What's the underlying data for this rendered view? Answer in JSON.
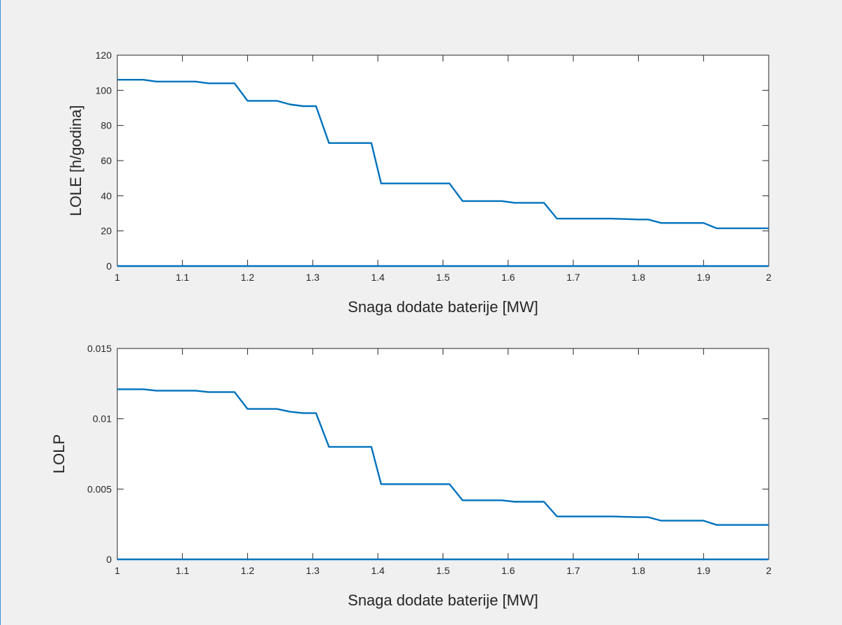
{
  "chart_data": [
    {
      "type": "line",
      "xlabel": "Snaga dodate baterije [MW]",
      "ylabel": "LOLE [h/godina]",
      "xlim": [
        1,
        2
      ],
      "ylim": [
        0,
        120
      ],
      "xticks": [
        1,
        1.1,
        1.2,
        1.3,
        1.4,
        1.5,
        1.6,
        1.7,
        1.8,
        1.9,
        2
      ],
      "xtick_labels": [
        "1",
        "1.1",
        "1.2",
        "1.3",
        "1.4",
        "1.5",
        "1.6",
        "1.7",
        "1.8",
        "1.9",
        "2"
      ],
      "yticks": [
        0,
        20,
        40,
        60,
        80,
        100,
        120
      ],
      "ytick_labels": [
        "0",
        "20",
        "40",
        "60",
        "80",
        "100",
        "120"
      ],
      "grid": false,
      "series": [
        {
          "color": "#0072bd",
          "x": [
            1,
            1.04,
            1.06,
            1.12,
            1.14,
            1.18,
            1.2,
            1.245,
            1.265,
            1.285,
            1.305,
            1.325,
            1.39,
            1.405,
            1.51,
            1.53,
            1.59,
            1.61,
            1.655,
            1.675,
            1.76,
            1.8,
            1.815,
            1.835,
            1.9,
            1.92,
            2
          ],
          "y": [
            106,
            106,
            105,
            105,
            104,
            104,
            94,
            94,
            92,
            91,
            91,
            70,
            70,
            47,
            47,
            37,
            37,
            36,
            36,
            27,
            27,
            26.5,
            26.5,
            24.5,
            24.5,
            21.5,
            21.5
          ]
        },
        {
          "color": "#0072bd",
          "x": [
            1,
            2
          ],
          "y": [
            0,
            0
          ]
        }
      ]
    },
    {
      "type": "line",
      "xlabel": "Snaga dodate baterije [MW]",
      "ylabel": "LOLP",
      "xlim": [
        1,
        2
      ],
      "ylim": [
        0,
        0.015
      ],
      "xticks": [
        1,
        1.1,
        1.2,
        1.3,
        1.4,
        1.5,
        1.6,
        1.7,
        1.8,
        1.9,
        2
      ],
      "xtick_labels": [
        "1",
        "1.1",
        "1.2",
        "1.3",
        "1.4",
        "1.5",
        "1.6",
        "1.7",
        "1.8",
        "1.9",
        "2"
      ],
      "yticks": [
        0,
        0.005,
        0.01,
        0.015
      ],
      "ytick_labels": [
        "0",
        "0.005",
        "0.01",
        "0.015"
      ],
      "grid": false,
      "series": [
        {
          "color": "#0072bd",
          "x": [
            1,
            1.04,
            1.06,
            1.12,
            1.14,
            1.18,
            1.2,
            1.245,
            1.265,
            1.285,
            1.305,
            1.325,
            1.39,
            1.405,
            1.51,
            1.53,
            1.59,
            1.61,
            1.655,
            1.675,
            1.76,
            1.8,
            1.815,
            1.835,
            1.9,
            1.92,
            2
          ],
          "y": [
            0.0121,
            0.0121,
            0.012,
            0.012,
            0.0119,
            0.0119,
            0.0107,
            0.0107,
            0.0105,
            0.0104,
            0.0104,
            0.008,
            0.008,
            0.00535,
            0.00535,
            0.0042,
            0.0042,
            0.0041,
            0.0041,
            0.00305,
            0.00305,
            0.003,
            0.003,
            0.00275,
            0.00275,
            0.00245,
            0.00245
          ]
        },
        {
          "color": "#0072bd",
          "x": [
            1,
            2
          ],
          "y": [
            0,
            0
          ]
        }
      ]
    }
  ]
}
